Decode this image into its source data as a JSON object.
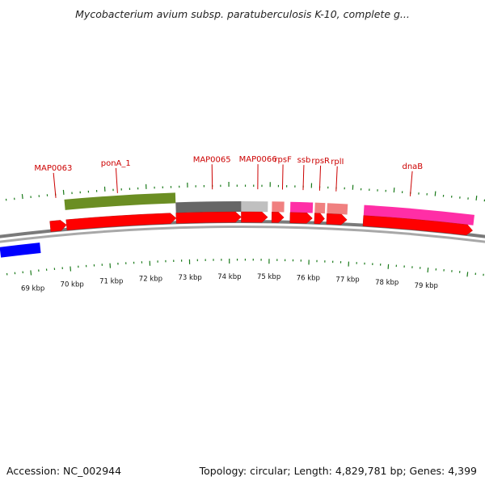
{
  "title": "Mycobacterium avium subsp. paratuberculosis K-10, complete g...",
  "footer": {
    "accession": "Accession: NC_002944",
    "topology": "Topology: circular; Length: 4,829,781 bp; Genes: 4,399"
  },
  "colors": {
    "forward_cds": "#ff0000",
    "feature_olive": "#6b8e23",
    "feature_gray": "#666666",
    "feature_lightgray": "#c0c0c0",
    "feature_salmon": "#f08080",
    "feature_magenta": "#ff2ea6",
    "left_feature_blue": "#0000ff",
    "tick_green": "#1a7a1a",
    "backbone": "#888888",
    "label_red": "#cc0000"
  },
  "axis": {
    "unit": "kbp",
    "ticks": [
      {
        "kbp": 69,
        "label": "69 kbp"
      },
      {
        "kbp": 70,
        "label": "70 kbp"
      },
      {
        "kbp": 71,
        "label": "71 kbp"
      },
      {
        "kbp": 72,
        "label": "72 kbp"
      },
      {
        "kbp": 73,
        "label": "73 kbp"
      },
      {
        "kbp": 74,
        "label": "74 kbp"
      },
      {
        "kbp": 75,
        "label": "75 kbp"
      },
      {
        "kbp": 76,
        "label": "76 kbp"
      },
      {
        "kbp": 77,
        "label": "77 kbp"
      },
      {
        "kbp": 78,
        "label": "78 kbp"
      },
      {
        "kbp": 79,
        "label": "79 kbp"
      }
    ]
  },
  "labels": [
    {
      "name": "MAP0063",
      "kbp": 69.8
    },
    {
      "name": "ponA_1",
      "kbp": 71.3
    },
    {
      "name": "MAP0065",
      "kbp": 73.6
    },
    {
      "name": "MAP0066",
      "kbp": 74.7
    },
    {
      "name": "rpsF",
      "kbp": 75.3
    },
    {
      "name": "ssb",
      "kbp": 75.8
    },
    {
      "name": "rpsR",
      "kbp": 76.2
    },
    {
      "name": "rplI",
      "kbp": 76.6
    },
    {
      "name": "dnaB",
      "kbp": 78.4
    }
  ],
  "features": {
    "cds": [
      {
        "start": 69.6,
        "end": 70.0
      },
      {
        "start": 70.0,
        "end": 72.7
      },
      {
        "start": 72.7,
        "end": 74.3
      },
      {
        "start": 74.3,
        "end": 74.95
      },
      {
        "start": 75.05,
        "end": 75.35
      },
      {
        "start": 75.5,
        "end": 76.05
      },
      {
        "start": 76.1,
        "end": 76.35
      },
      {
        "start": 76.4,
        "end": 76.9
      },
      {
        "start": 77.3,
        "end": 80.0
      }
    ],
    "upper": [
      {
        "start": 70.0,
        "end": 72.7,
        "color": "feature_olive",
        "row": "upper"
      },
      {
        "start": 72.7,
        "end": 74.3,
        "color": "feature_gray",
        "row": "middle"
      },
      {
        "start": 74.3,
        "end": 74.95,
        "color": "feature_lightgray",
        "row": "middle"
      },
      {
        "start": 75.05,
        "end": 75.35,
        "color": "feature_salmon",
        "row": "middle"
      },
      {
        "start": 75.5,
        "end": 76.05,
        "color": "feature_magenta",
        "row": "middle"
      },
      {
        "start": 76.1,
        "end": 76.35,
        "color": "feature_salmon",
        "row": "middle"
      },
      {
        "start": 76.4,
        "end": 76.9,
        "color": "feature_salmon",
        "row": "middle"
      },
      {
        "start": 77.3,
        "end": 80.0,
        "color": "feature_magenta",
        "row": "middle"
      }
    ],
    "left_blue": {
      "start": 68.3,
      "end": 69.3
    }
  }
}
